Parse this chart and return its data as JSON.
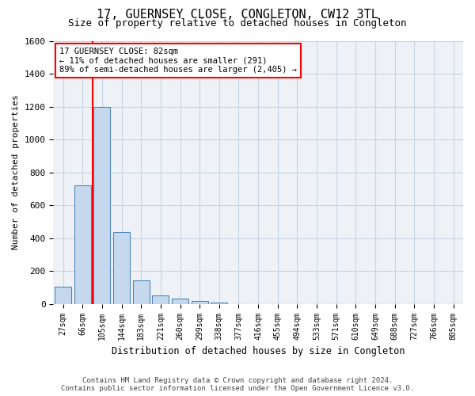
{
  "title": "17, GUERNSEY CLOSE, CONGLETON, CW12 3TL",
  "subtitle": "Size of property relative to detached houses in Congleton",
  "xlabel": "Distribution of detached houses by size in Congleton",
  "ylabel": "Number of detached properties",
  "bar_values": [
    105,
    720,
    1200,
    435,
    145,
    50,
    30,
    20,
    10,
    0,
    0,
    0,
    0,
    0,
    0,
    0,
    0,
    0,
    0,
    0,
    0
  ],
  "bar_labels": [
    "27sqm",
    "66sqm",
    "105sqm",
    "144sqm",
    "183sqm",
    "221sqm",
    "260sqm",
    "299sqm",
    "338sqm",
    "377sqm",
    "416sqm",
    "455sqm",
    "494sqm",
    "533sqm",
    "571sqm",
    "610sqm",
    "649sqm",
    "688sqm",
    "727sqm",
    "766sqm",
    "805sqm"
  ],
  "bar_color": "#c5d8ed",
  "bar_edge_color": "#4e86b8",
  "ylim": [
    0,
    1600
  ],
  "yticks": [
    0,
    200,
    400,
    600,
    800,
    1000,
    1200,
    1400,
    1600
  ],
  "red_line_x": 1.5,
  "annotation_title": "17 GUERNSEY CLOSE: 82sqm",
  "annotation_line1": "← 11% of detached houses are smaller (291)",
  "annotation_line2": "89% of semi-detached houses are larger (2,405) →",
  "footer1": "Contains HM Land Registry data © Crown copyright and database right 2024.",
  "footer2": "Contains public sector information licensed under the Open Government Licence v3.0.",
  "bg_color": "#eef2f7",
  "grid_color": "#c8d4e0"
}
